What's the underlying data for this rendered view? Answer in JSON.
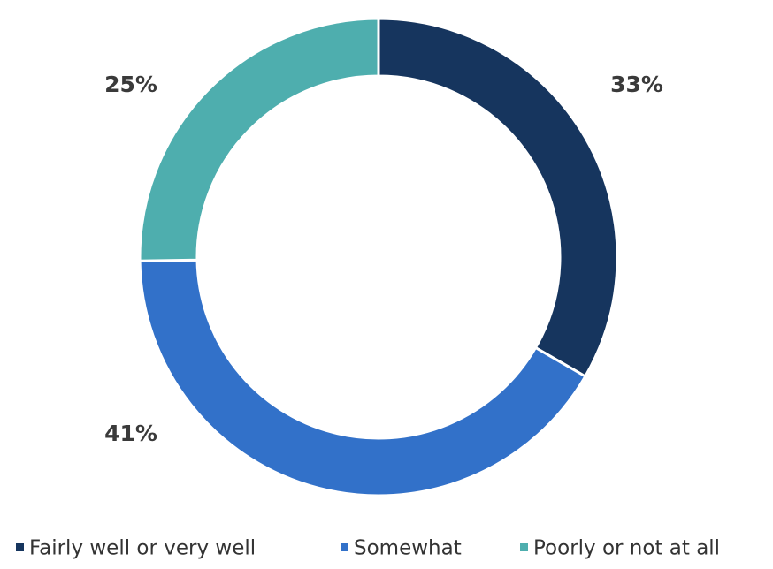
{
  "chart_data": {
    "type": "donut",
    "categories": [
      "Fairly well or very well",
      "Somewhat",
      "Poorly or not at all"
    ],
    "values": [
      33,
      41,
      25
    ],
    "value_labels": [
      "33%",
      "41%",
      "25%"
    ],
    "colors": [
      "#16355e",
      "#3271c9",
      "#4eaeae"
    ],
    "legend": "bottom"
  }
}
